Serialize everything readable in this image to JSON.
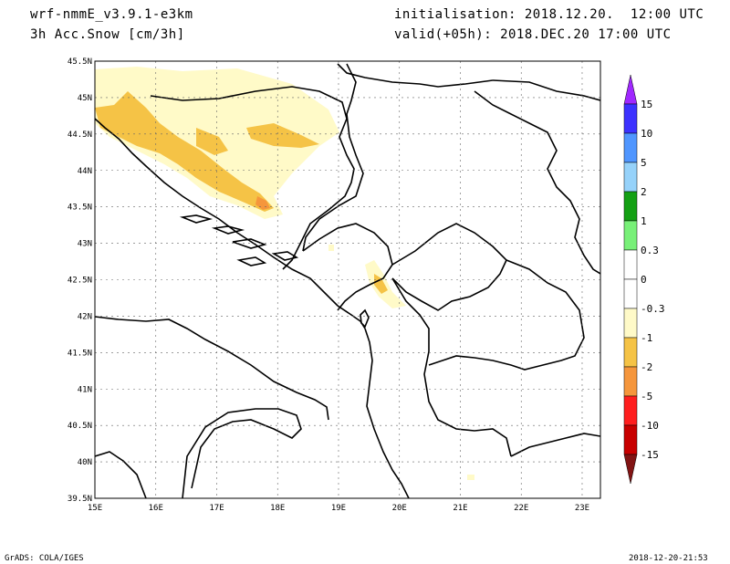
{
  "header": {
    "model": "wrf-nmmE_v3.9.1-e3km",
    "field": "3h Acc.Snow [cm/3h]",
    "init": "initialisation: 2018.12.20.  12:00 UTC",
    "valid": "valid(+05h): 2018.DEC.20 17:00 UTC"
  },
  "map": {
    "lon_labels": [
      "15E",
      "16E",
      "17E",
      "18E",
      "19E",
      "20E",
      "21E",
      "22E",
      "23E"
    ],
    "lat_labels": [
      "39.5N",
      "40N",
      "40.5N",
      "41N",
      "41.5N",
      "42N",
      "42.5N",
      "43N",
      "43.5N",
      "44N",
      "44.5N",
      "45N",
      "45.5N"
    ],
    "lon_range": [
      15,
      23.3
    ],
    "lat_range": [
      39.5,
      45.5
    ],
    "grid": "dotted",
    "snow_colors": {
      "light": "#fffac8",
      "medium": "#f5c346",
      "heavy": "#f5963c"
    }
  },
  "colorbar": {
    "labels": [
      "15",
      "10",
      "5",
      "2",
      "1",
      "0.3",
      "0",
      "-0.3",
      "-1",
      "-2",
      "-5",
      "-10",
      "-15"
    ],
    "colors": [
      "#3c32ff",
      "#5096ff",
      "#96d2fa",
      "#14a014",
      "#78f078",
      "#ffffff",
      "#ffffff",
      "#fffac8",
      "#f5c346",
      "#f5963c",
      "#ff1e1e",
      "#c80000",
      "#a00000"
    ],
    "top_arrow_color": "#a028ff",
    "bottom_arrow_color": "#821414"
  },
  "footer": {
    "left": "GrADS: COLA/IGES",
    "right": "2018-12-20-21:53"
  }
}
